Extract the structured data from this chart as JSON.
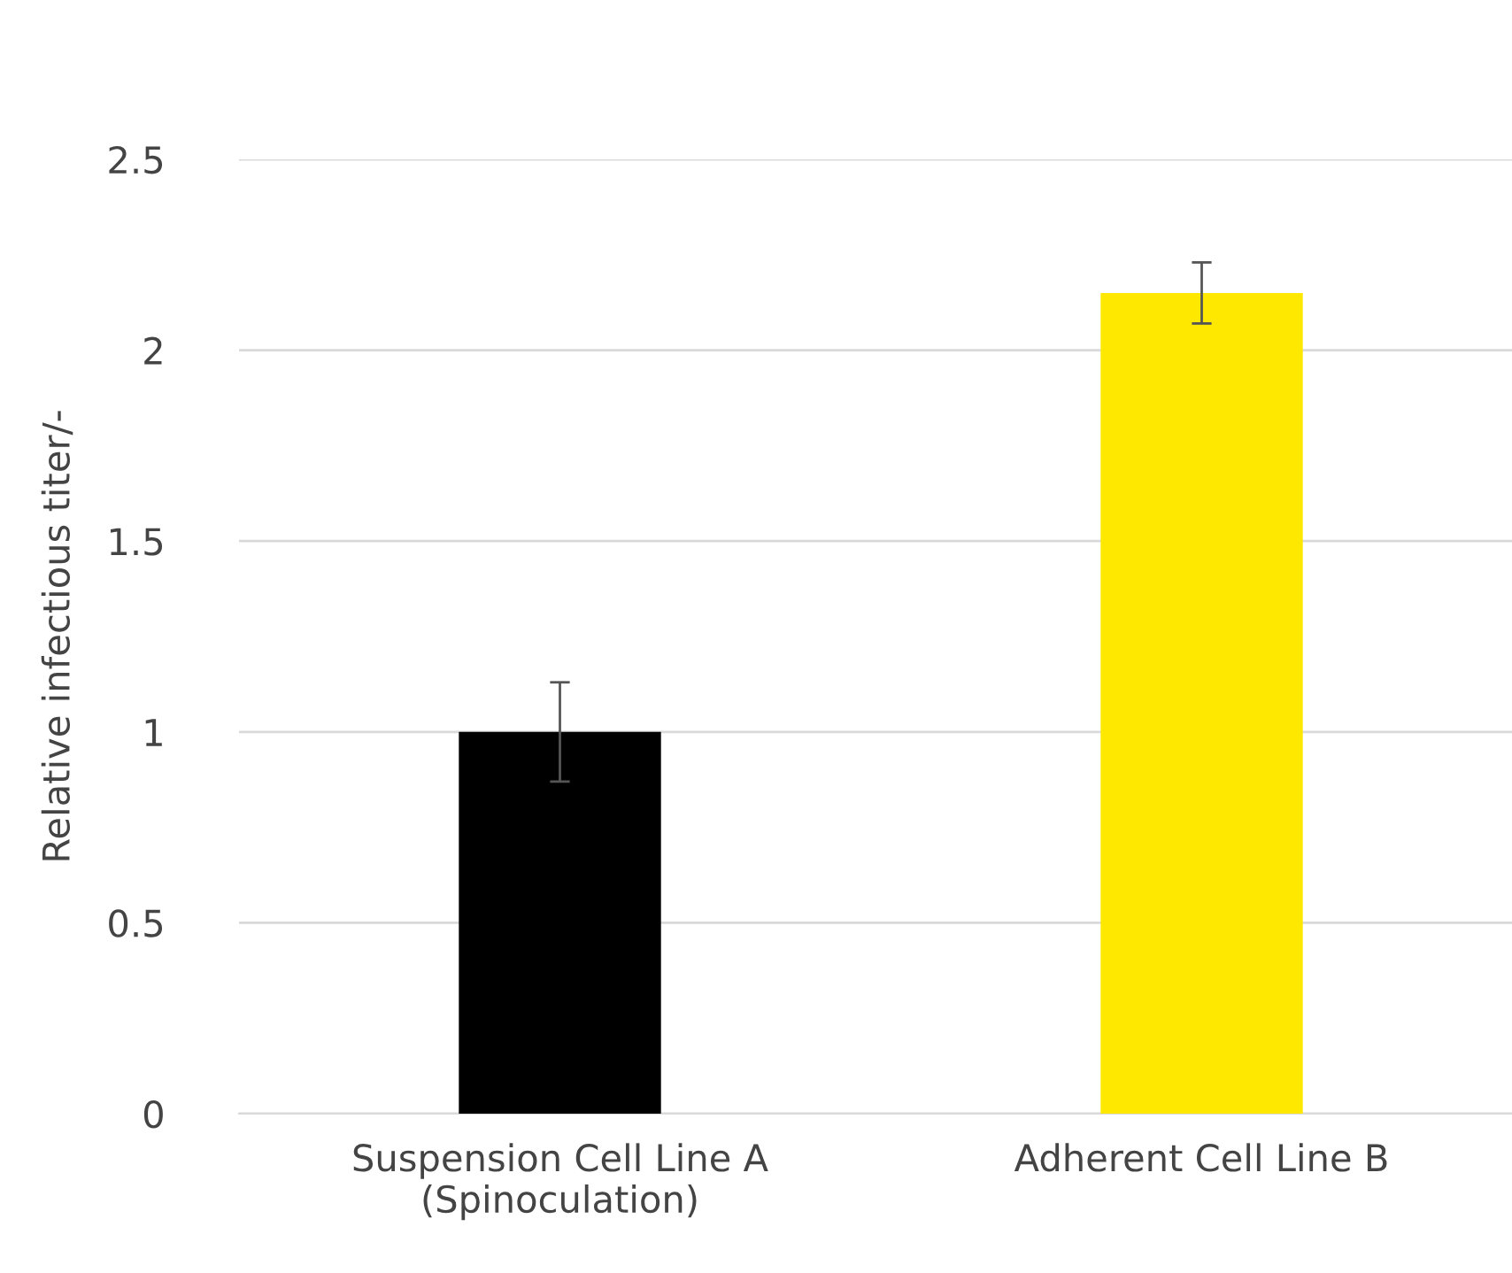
{
  "chart_data": {
    "type": "bar",
    "ylabel": "Relative infectious titer/-",
    "categories": [
      "Suspension Cell Line A\n(Spinoculation)",
      "Adherent Cell Line B"
    ],
    "values": [
      1.0,
      2.15
    ],
    "colors": [
      "#000000",
      "#ffe800"
    ],
    "errors": [
      [
        0.87,
        1.13
      ],
      [
        2.07,
        2.23
      ]
    ],
    "ylim": [
      0,
      2.5
    ],
    "yticks": [
      0,
      0.5,
      1,
      1.5,
      2,
      2.5
    ],
    "grid": "y",
    "legend": false
  }
}
